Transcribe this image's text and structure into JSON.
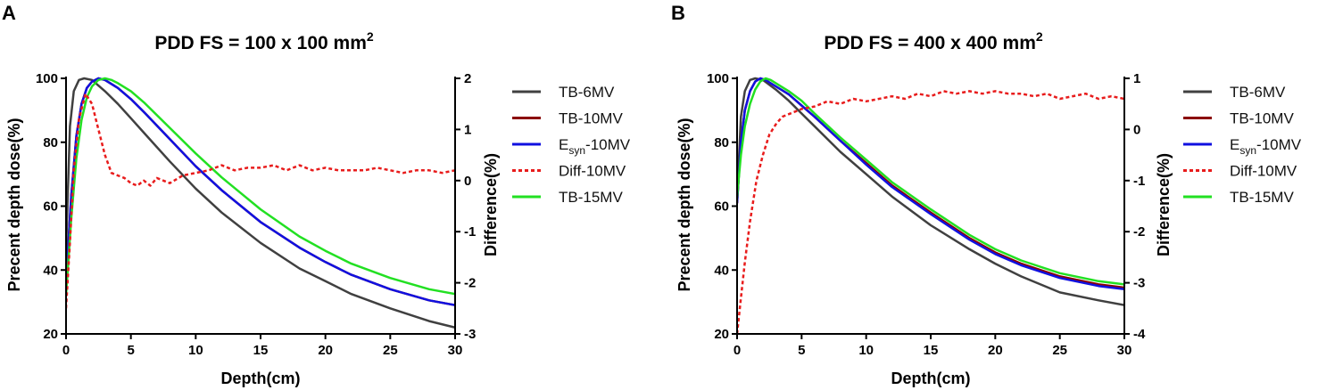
{
  "chart_data": [
    {
      "panel": "A",
      "type": "line",
      "title": {
        "main": "PDD FS = 100 x 100 mm",
        "sup": "2"
      },
      "xlabel": "Depth(cm)",
      "ylabel": "Precent depth dose(%)",
      "y2label": "Difference(%)",
      "xlim": [
        0,
        30
      ],
      "ylim": [
        20,
        100
      ],
      "y2lim": [
        -3,
        2
      ],
      "xticks": [
        "0",
        "5",
        "10",
        "15",
        "20",
        "25",
        "30"
      ],
      "yticks": [
        "20",
        "40",
        "60",
        "80",
        "100"
      ],
      "y2ticks": [
        "-3",
        "-2",
        "-1",
        "0",
        "1",
        "2"
      ],
      "legend": [
        {
          "label": "TB-6MV",
          "color": "#404040",
          "dash": false
        },
        {
          "label": "TB-10MV",
          "color": "#8b0000",
          "dash": false
        },
        {
          "label_main": "E",
          "label_sub": "syn",
          "label_tail": "-10MV",
          "color": "#1010e0",
          "dash": false
        },
        {
          "label": "Diff-10MV",
          "color": "#e81c1c",
          "dash": true
        },
        {
          "label": "TB-15MV",
          "color": "#22e022",
          "dash": false
        }
      ],
      "series": [
        {
          "name": "TB-6MV",
          "axis": "left",
          "color": "#404040",
          "dash": false,
          "width": 2.5,
          "x": [
            0,
            0.3,
            0.6,
            1.0,
            1.4,
            2,
            3,
            4,
            5,
            6,
            8,
            10,
            12,
            15,
            18,
            20,
            22,
            25,
            28,
            30
          ],
          "y": [
            46,
            85,
            96,
            99.5,
            100,
            99.5,
            96,
            92,
            87.5,
            83,
            74,
            65.5,
            58,
            48.5,
            40.5,
            36.5,
            32.5,
            28,
            24,
            22
          ]
        },
        {
          "name": "TB-10MV",
          "axis": "left",
          "color": "#8b0000",
          "dash": false,
          "width": 2.5,
          "x": [
            0,
            0.4,
            0.8,
            1.2,
            1.6,
            2.0,
            2.5,
            3,
            4,
            5,
            6,
            8,
            10,
            12,
            15,
            18,
            20,
            22,
            25,
            28,
            30
          ],
          "y": [
            36,
            63,
            82,
            92,
            97,
            99,
            100,
            99.5,
            97,
            93.5,
            89.5,
            81,
            72.5,
            65,
            55,
            47,
            42.5,
            38.5,
            34,
            30.5,
            29
          ]
        },
        {
          "name": "Esyn-10MV",
          "axis": "left",
          "color": "#1010e0",
          "dash": false,
          "width": 2.5,
          "x": [
            0,
            0.4,
            0.8,
            1.2,
            1.6,
            2.0,
            2.5,
            3,
            4,
            5,
            6,
            8,
            10,
            12,
            15,
            18,
            20,
            22,
            25,
            28,
            30
          ],
          "y": [
            36,
            63,
            82,
            92,
            97,
            99,
            100,
            99.5,
            97,
            93.5,
            89.5,
            81,
            72.5,
            65,
            55,
            47,
            42.5,
            38.5,
            34,
            30.5,
            29
          ]
        },
        {
          "name": "TB-15MV",
          "axis": "left",
          "color": "#22e022",
          "dash": false,
          "width": 2.5,
          "x": [
            0,
            0.4,
            0.8,
            1.2,
            1.6,
            2.0,
            2.5,
            3,
            3.5,
            4,
            5,
            6,
            8,
            10,
            12,
            15,
            18,
            20,
            22,
            25,
            28,
            30
          ],
          "y": [
            32,
            56,
            75,
            87,
            94,
            97.5,
            99.5,
            100,
            99.5,
            98.5,
            96,
            92.5,
            84.5,
            76.5,
            69,
            59,
            50.5,
            46,
            42,
            37.5,
            34,
            32.5
          ]
        },
        {
          "name": "Diff-10MV",
          "axis": "right",
          "color": "#e81c1c",
          "dash": true,
          "width": 2.5,
          "x": [
            0,
            0.3,
            0.6,
            1.0,
            1.5,
            2.0,
            2.5,
            3,
            3.5,
            4,
            4.5,
            5,
            5.5,
            6,
            6.5,
            7,
            7.5,
            8,
            9,
            10,
            11,
            12,
            13,
            14,
            15,
            16,
            17,
            18,
            19,
            20,
            21,
            22,
            23,
            24,
            25,
            26,
            27,
            28,
            29,
            30
          ],
          "y": [
            -2.5,
            -1.2,
            0.2,
            1.2,
            1.7,
            1.5,
            1.0,
            0.5,
            0.15,
            0.1,
            0.05,
            -0.05,
            -0.1,
            0.0,
            -0.1,
            0.05,
            0.0,
            -0.05,
            0.1,
            0.15,
            0.2,
            0.3,
            0.2,
            0.25,
            0.25,
            0.3,
            0.2,
            0.3,
            0.2,
            0.25,
            0.2,
            0.2,
            0.2,
            0.25,
            0.2,
            0.15,
            0.2,
            0.2,
            0.15,
            0.2
          ]
        }
      ]
    },
    {
      "panel": "B",
      "type": "line",
      "title": {
        "main": "PDD FS = 400 x 400 mm",
        "sup": "2"
      },
      "xlabel": "Depth(cm)",
      "ylabel": "Precent depth dose(%)",
      "y2label": "Difference(%)",
      "xlim": [
        0,
        30
      ],
      "ylim": [
        20,
        100
      ],
      "y2lim": [
        -4,
        1
      ],
      "xticks": [
        "0",
        "5",
        "10",
        "15",
        "20",
        "25",
        "30"
      ],
      "yticks": [
        "20",
        "40",
        "60",
        "80",
        "100"
      ],
      "y2ticks": [
        "-4",
        "-3",
        "-2",
        "-1",
        "0",
        "1"
      ],
      "legend": [
        {
          "label": "TB-6MV",
          "color": "#404040",
          "dash": false
        },
        {
          "label": "TB-10MV",
          "color": "#8b0000",
          "dash": false
        },
        {
          "label_main": "E",
          "label_sub": "syn",
          "label_tail": "-10MV",
          "color": "#1010e0",
          "dash": false
        },
        {
          "label": "Diff-10MV",
          "color": "#e81c1c",
          "dash": true
        },
        {
          "label": "TB-15MV",
          "color": "#22e022",
          "dash": false
        }
      ],
      "series": [
        {
          "name": "TB-6MV",
          "axis": "left",
          "color": "#404040",
          "dash": false,
          "width": 2.5,
          "x": [
            0,
            0.3,
            0.6,
            1.0,
            1.4,
            2,
            3,
            4,
            5,
            6,
            8,
            10,
            12,
            15,
            18,
            20,
            22,
            25,
            28,
            30
          ],
          "y": [
            62,
            88,
            96,
            99.5,
            100,
            99.5,
            96.5,
            93,
            89,
            85,
            77,
            70,
            63,
            54,
            46.5,
            42,
            38,
            33,
            30.5,
            29
          ]
        },
        {
          "name": "TB-10MV",
          "axis": "left",
          "color": "#8b0000",
          "dash": false,
          "width": 2.5,
          "x": [
            0,
            0.3,
            0.6,
            1.0,
            1.4,
            1.8,
            2.2,
            3,
            4,
            5,
            6,
            8,
            10,
            12,
            15,
            18,
            20,
            22,
            25,
            28,
            30
          ],
          "y": [
            61,
            80,
            90,
            96,
            99,
            100,
            99.5,
            97.5,
            95,
            91.5,
            88,
            80.5,
            73.5,
            66.5,
            58,
            50,
            45.5,
            42,
            38,
            35.5,
            34.5
          ]
        },
        {
          "name": "Esyn-10MV",
          "axis": "left",
          "color": "#1010e0",
          "dash": false,
          "width": 2.5,
          "x": [
            0,
            0.3,
            0.6,
            1.0,
            1.4,
            1.8,
            2.2,
            3,
            4,
            5,
            6,
            8,
            10,
            12,
            15,
            18,
            20,
            22,
            25,
            28,
            30
          ],
          "y": [
            61,
            80,
            90,
            96,
            99,
            100,
            99.5,
            97.5,
            95,
            91.5,
            88,
            80.5,
            73,
            66,
            57.5,
            49.5,
            45,
            41.5,
            37.5,
            35,
            34
          ]
        },
        {
          "name": "TB-15MV",
          "axis": "left",
          "color": "#22e022",
          "dash": false,
          "width": 2.5,
          "x": [
            0,
            0.3,
            0.6,
            1.0,
            1.4,
            1.8,
            2.2,
            2.6,
            3,
            4,
            5,
            6,
            8,
            10,
            12,
            15,
            18,
            20,
            22,
            25,
            28,
            30
          ],
          "y": [
            63,
            76,
            85,
            92,
            96.5,
            99,
            100,
            99.5,
            98.5,
            96,
            93,
            89,
            81.5,
            74.5,
            67.5,
            59,
            51,
            46.5,
            43,
            39,
            36.5,
            35.5
          ]
        },
        {
          "name": "Diff-10MV",
          "axis": "right",
          "color": "#e81c1c",
          "dash": true,
          "width": 2.5,
          "x": [
            0,
            0.3,
            0.6,
            1.0,
            1.5,
            2.0,
            2.5,
            3,
            3.5,
            4,
            4.5,
            5,
            6,
            7,
            8,
            9,
            10,
            11,
            12,
            13,
            14,
            15,
            16,
            17,
            18,
            19,
            20,
            21,
            22,
            23,
            24,
            25,
            26,
            27,
            28,
            29,
            30
          ],
          "y": [
            -4.0,
            -3.3,
            -2.6,
            -1.8,
            -1.0,
            -0.5,
            -0.1,
            0.1,
            0.25,
            0.3,
            0.35,
            0.4,
            0.45,
            0.55,
            0.5,
            0.6,
            0.55,
            0.6,
            0.65,
            0.6,
            0.7,
            0.65,
            0.75,
            0.7,
            0.75,
            0.7,
            0.75,
            0.7,
            0.7,
            0.65,
            0.7,
            0.6,
            0.65,
            0.7,
            0.6,
            0.65,
            0.6
          ]
        }
      ]
    }
  ]
}
